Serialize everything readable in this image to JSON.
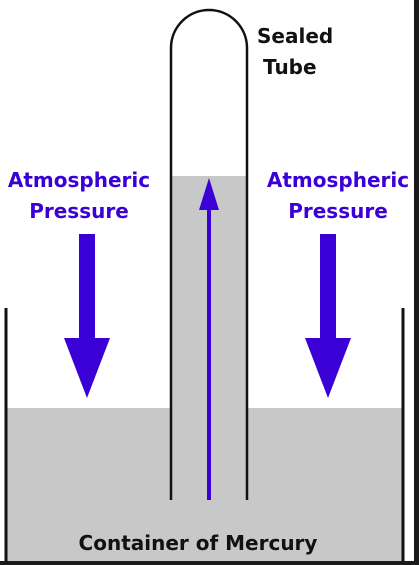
{
  "diagram": {
    "sealed_tube_label_line1": "Sealed",
    "sealed_tube_label_line2": "Tube",
    "left_pressure_line1": "Atmospheric",
    "left_pressure_line2": "Pressure",
    "right_pressure_line1": "Atmospheric",
    "right_pressure_line2": "Pressure",
    "container_label": "Container of Mercury"
  },
  "colors": {
    "accent_blue": "#3a00d6",
    "mercury_gray": "#c8c8c8",
    "outline_black": "#111111",
    "background": "#ffffff",
    "frame_dark": "#1a1a1a"
  },
  "icons": {
    "left_arrow": "arrow-down-icon",
    "right_arrow": "arrow-down-icon",
    "tube_arrow": "arrow-up-icon"
  }
}
